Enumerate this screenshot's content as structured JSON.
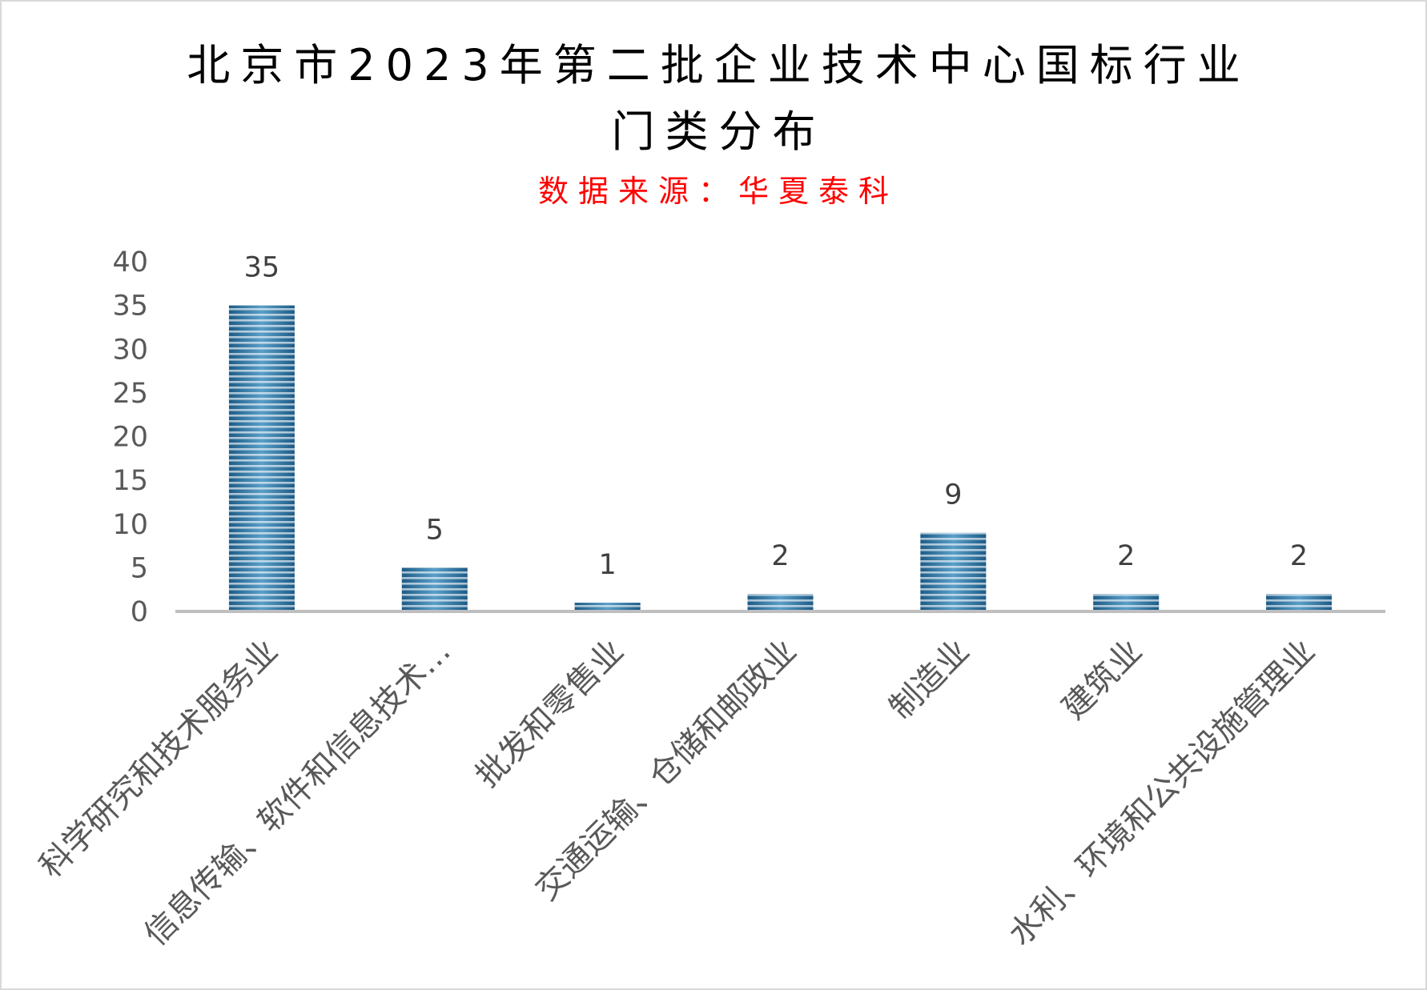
{
  "chart_data": {
    "type": "bar",
    "title": [
      "北京市2023年第二批企业技术中心国标行业",
      "门类分布"
    ],
    "subtitle": "数据来源：华夏泰科",
    "categories": [
      "科学研究和技术服务业",
      "信息传输、软件和信息技术…",
      "批发和零售业",
      "交通运输、仓储和邮政业",
      "制造业",
      "建筑业",
      "水利、环境和公共设施管理业"
    ],
    "values": [
      35,
      5,
      1,
      2,
      9,
      2,
      2
    ],
    "ylim": [
      0,
      40
    ],
    "yticks": [
      0,
      5,
      10,
      15,
      20,
      25,
      30,
      35,
      40
    ],
    "xlabel": "",
    "ylabel": "",
    "grid": false,
    "legend": "none",
    "data_labels": true,
    "category_label_rotation_deg": -45,
    "colors": {
      "bar_dark": "#1d5b86",
      "bar_light": "#5a9fc9",
      "bar_stripe": "#ffffff",
      "axis": "#bfbfbf",
      "tick_label": "#595959",
      "data_label": "#404040",
      "title": "#000000",
      "subtitle": "#ff0000"
    }
  }
}
